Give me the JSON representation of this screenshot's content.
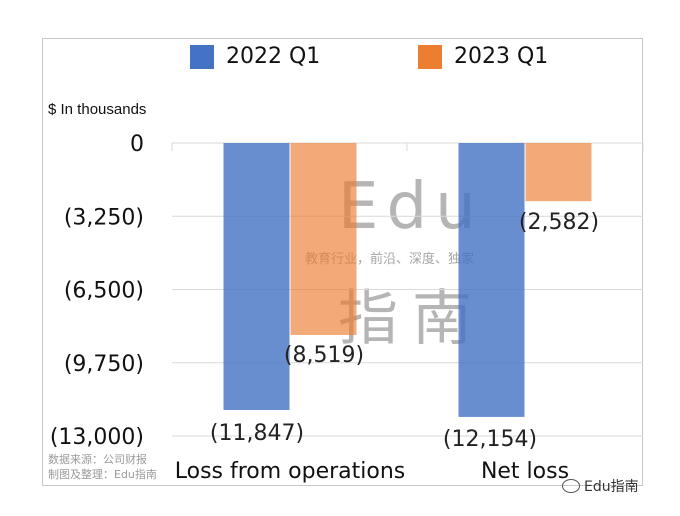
{
  "chart_data": {
    "type": "bar",
    "categories": [
      "Loss from operations",
      "Net loss"
    ],
    "series": [
      {
        "name": "2022 Q1",
        "values": [
          -11847,
          -12154
        ],
        "labels": [
          "(11,847)",
          "(12,154)"
        ]
      },
      {
        "name": "2023 Q1",
        "values": [
          -8519,
          -2582
        ],
        "labels": [
          "(8,519)",
          "(2,582)"
        ]
      }
    ],
    "colors": {
      "2022 Q1": "#4472C4",
      "2023 Q1": "#ED7D31"
    },
    "ylabel": "$ In thousands",
    "ylim": [
      -13000,
      0
    ],
    "yticks": [
      0,
      -3250,
      -6500,
      -9750,
      -13000
    ],
    "ytick_labels": [
      "0",
      "(3,250)",
      "(6,500)",
      "(9,750)",
      "(13,000)"
    ],
    "grid": true,
    "legend": "top"
  },
  "legend": {
    "first": "2022 Q1",
    "second": "2023 Q1"
  },
  "source_note": {
    "line1": "数据来源：公司财报",
    "line2": "制图及整理：Edu指南"
  },
  "watermark": {
    "logo": "Edu",
    "slogan": "教育行业，前沿、深度、独家",
    "name": "指南"
  },
  "brand": "Edu指南"
}
